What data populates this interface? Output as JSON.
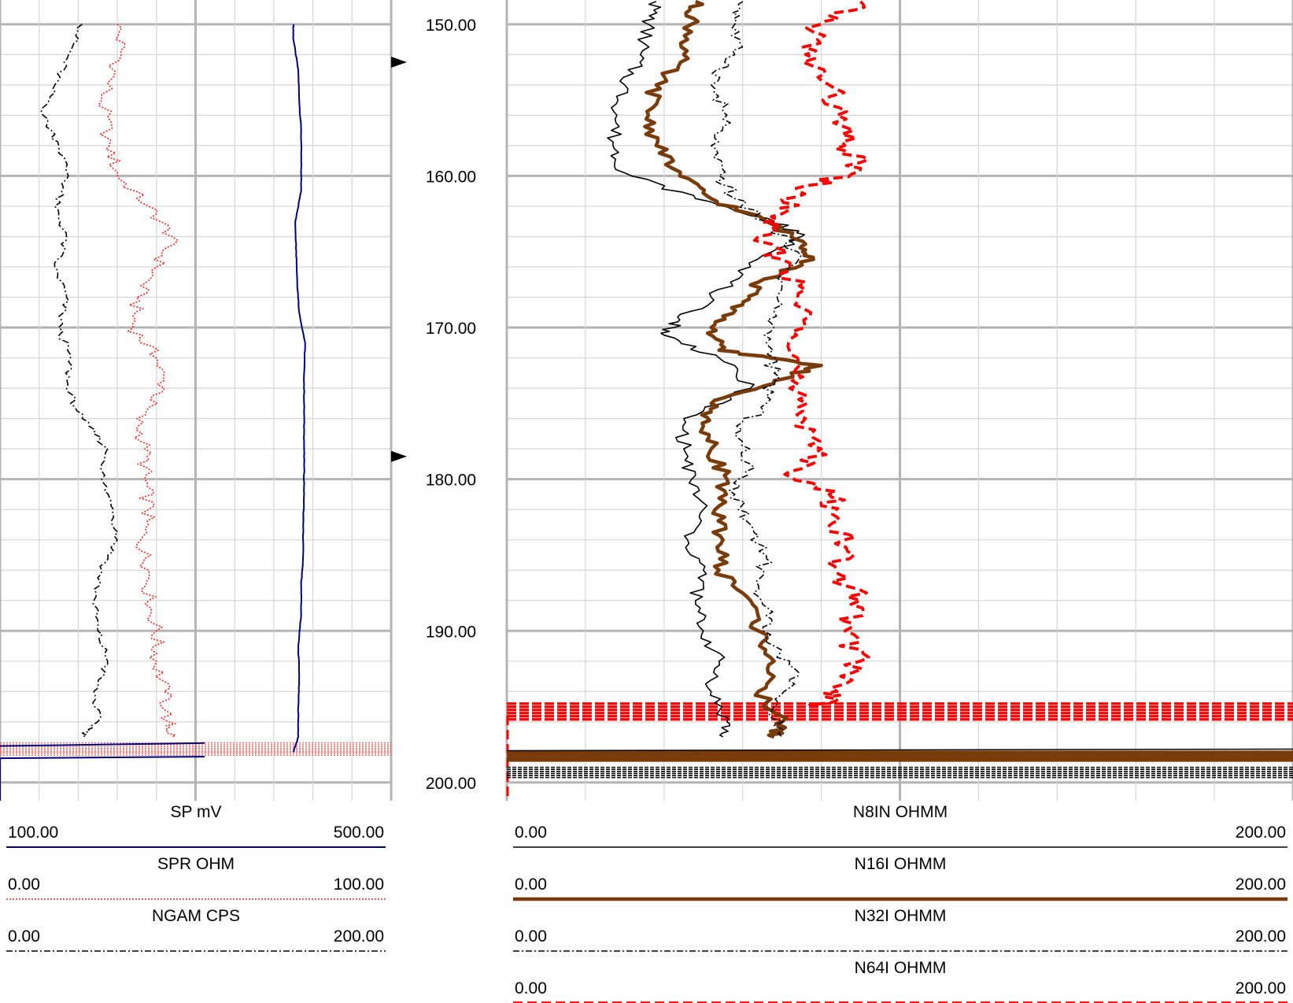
{
  "depth_track": {
    "labels": [
      "150.00",
      "160.00",
      "170.00",
      "180.00",
      "190.00",
      "200.00"
    ],
    "depth_range": [
      148.4,
      201.2
    ]
  },
  "legend": {
    "left": [
      {
        "name": "SP",
        "unit": "mV",
        "min": "100.00",
        "max": "500.00"
      },
      {
        "name": "SPR",
        "unit": "OHM",
        "min": "0.00",
        "max": "100.00"
      },
      {
        "name": "NGAM",
        "unit": "CPS",
        "min": "0.00",
        "max": "200.00"
      }
    ],
    "right": [
      {
        "name": "N8IN",
        "unit": "OHMM",
        "min": "0.00",
        "max": "200.00"
      },
      {
        "name": "N16I",
        "unit": "OHMM",
        "min": "0.00",
        "max": "200.00"
      },
      {
        "name": "N32I",
        "unit": "OHMM",
        "min": "0.00",
        "max": "200.00"
      },
      {
        "name": "N64I",
        "unit": "OHMM",
        "min": "0.00",
        "max": "200.00"
      }
    ]
  },
  "chart_data": {
    "type": "line",
    "ylim": [
      148.4,
      201.2
    ],
    "y_reversed": true,
    "grid": true,
    "depth_markers": [
      152.5,
      178.5
    ],
    "tracks": [
      {
        "series": [
          {
            "name": "SP",
            "unit": "mV",
            "xlim": [
              100,
              500
            ],
            "color": "#000080",
            "style": "solid",
            "points": [
              [
                150,
                400
              ],
              [
                151,
                400
              ],
              [
                153,
                405
              ],
              [
                155,
                406
              ],
              [
                157,
                408
              ],
              [
                159,
                408
              ],
              [
                161,
                408
              ],
              [
                163,
                402
              ],
              [
                165,
                403
              ],
              [
                167,
                404
              ],
              [
                169,
                406
              ],
              [
                171,
                412
              ],
              [
                173,
                411
              ],
              [
                175,
                411
              ],
              [
                177,
                411
              ],
              [
                179,
                411
              ],
              [
                181,
                411
              ],
              [
                183,
                410
              ],
              [
                185,
                410
              ],
              [
                187,
                408
              ],
              [
                189,
                408
              ],
              [
                191,
                405
              ],
              [
                193,
                406
              ],
              [
                195,
                405
              ],
              [
                197,
                405
              ],
              [
                198,
                400
              ]
            ]
          },
          {
            "name": "SPR",
            "unit": "OHM",
            "xlim": [
              0,
              100
            ],
            "color": "#ff2020",
            "style": "dotted",
            "points": [
              [
                150,
                30
              ],
              [
                152,
                31
              ],
              [
                155,
                26
              ],
              [
                158,
                28
              ],
              [
                160,
                30
              ],
              [
                162,
                38
              ],
              [
                164,
                44
              ],
              [
                166,
                40
              ],
              [
                168,
                35
              ],
              [
                170,
                34
              ],
              [
                172,
                40
              ],
              [
                174,
                42
              ],
              [
                176,
                35
              ],
              [
                178,
                37
              ],
              [
                180,
                37
              ],
              [
                182,
                38
              ],
              [
                184,
                36
              ],
              [
                186,
                38
              ],
              [
                188,
                38
              ],
              [
                190,
                40
              ],
              [
                192,
                40
              ],
              [
                194,
                42
              ],
              [
                196,
                43
              ],
              [
                197,
                44
              ]
            ]
          },
          {
            "name": "NGAM",
            "unit": "CPS",
            "xlim": [
              0,
              200
            ],
            "color": "#000000",
            "style": "dashdot",
            "points": [
              [
                150,
                42
              ],
              [
                152,
                35
              ],
              [
                154,
                28
              ],
              [
                156,
                22
              ],
              [
                158,
                30
              ],
              [
                160,
                35
              ],
              [
                162,
                28
              ],
              [
                164,
                34
              ],
              [
                166,
                28
              ],
              [
                168,
                34
              ],
              [
                170,
                30
              ],
              [
                172,
                36
              ],
              [
                174,
                34
              ],
              [
                176,
                42
              ],
              [
                178,
                55
              ],
              [
                180,
                52
              ],
              [
                182,
                58
              ],
              [
                184,
                60
              ],
              [
                186,
                52
              ],
              [
                188,
                48
              ],
              [
                190,
                50
              ],
              [
                192,
                55
              ],
              [
                194,
                48
              ],
              [
                196,
                50
              ],
              [
                197,
                42
              ]
            ]
          }
        ]
      },
      {
        "series": [
          {
            "name": "N8IN",
            "unit": "OHMM",
            "xlim": [
              0,
              200
            ],
            "color": "#000000",
            "style": "solid",
            "points": [
              [
                148.5,
                38
              ],
              [
                150,
                36
              ],
              [
                152,
                34
              ],
              [
                154,
                30
              ],
              [
                156,
                28
              ],
              [
                158,
                27
              ],
              [
                159.8,
                30
              ],
              [
                161.5,
                48
              ],
              [
                163,
                68
              ],
              [
                164,
                75
              ],
              [
                166,
                62
              ],
              [
                168,
                52
              ],
              [
                169.5,
                44
              ],
              [
                170.5,
                40
              ],
              [
                172,
                54
              ],
              [
                174,
                62
              ],
              [
                176,
                45
              ],
              [
                178,
                45
              ],
              [
                180,
                47
              ],
              [
                182,
                50
              ],
              [
                184,
                46
              ],
              [
                186,
                50
              ],
              [
                188,
                48
              ],
              [
                190,
                50
              ],
              [
                192,
                54
              ],
              [
                194,
                52
              ],
              [
                196,
                56
              ],
              [
                197,
                55
              ]
            ]
          },
          {
            "name": "N16I",
            "unit": "OHMM",
            "xlim": [
              0,
              200
            ],
            "color": "#7a3b0a",
            "style": "solid",
            "points": [
              [
                148.5,
                48
              ],
              [
                150,
                47
              ],
              [
                152,
                45
              ],
              [
                154,
                38
              ],
              [
                156,
                36
              ],
              [
                158,
                38
              ],
              [
                160,
                44
              ],
              [
                161.5,
                52
              ],
              [
                163,
                66
              ],
              [
                164.5,
                76
              ],
              [
                165.5,
                78
              ],
              [
                167,
                64
              ],
              [
                168.5,
                60
              ],
              [
                170,
                52
              ],
              [
                171.5,
                54
              ],
              [
                172.5,
                80
              ],
              [
                173.5,
                68
              ],
              [
                175,
                52
              ],
              [
                176.5,
                50
              ],
              [
                178,
                52
              ],
              [
                180,
                56
              ],
              [
                182,
                53
              ],
              [
                184,
                55
              ],
              [
                186,
                54
              ],
              [
                188,
                62
              ],
              [
                190,
                64
              ],
              [
                192,
                68
              ],
              [
                194,
                64
              ],
              [
                196,
                70
              ],
              [
                197,
                68
              ]
            ]
          },
          {
            "name": "N32I",
            "unit": "OHMM",
            "xlim": [
              0,
              200
            ],
            "color": "#000000",
            "style": "dashdot",
            "points": [
              [
                148.5,
                60
              ],
              [
                150,
                58
              ],
              [
                152,
                58
              ],
              [
                154,
                52
              ],
              [
                156,
                56
              ],
              [
                158,
                52
              ],
              [
                160,
                54
              ],
              [
                161.5,
                58
              ],
              [
                163,
                66
              ],
              [
                165,
                74
              ],
              [
                167,
                70
              ],
              [
                169,
                68
              ],
              [
                171,
                66
              ],
              [
                173,
                68
              ],
              [
                175,
                66
              ],
              [
                177,
                58
              ],
              [
                179,
                62
              ],
              [
                181,
                58
              ],
              [
                183,
                62
              ],
              [
                185,
                66
              ],
              [
                187,
                64
              ],
              [
                189,
                66
              ],
              [
                191,
                68
              ],
              [
                193,
                74
              ],
              [
                195,
                68
              ],
              [
                197,
                70
              ]
            ]
          },
          {
            "name": "N64I",
            "unit": "OHMM",
            "xlim": [
              0,
              200
            ],
            "color": "#ff0000",
            "style": "dashed",
            "points": [
              [
                148.5,
                90
              ],
              [
                150,
                80
              ],
              [
                152,
                76
              ],
              [
                154,
                82
              ],
              [
                156,
                84
              ],
              [
                158,
                86
              ],
              [
                159.5,
                90
              ],
              [
                161,
                74
              ],
              [
                162.5,
                70
              ],
              [
                164,
                64
              ],
              [
                166,
                72
              ],
              [
                168,
                74
              ],
              [
                170,
                76
              ],
              [
                172,
                74
              ],
              [
                174,
                72
              ],
              [
                176,
                76
              ],
              [
                178,
                80
              ],
              [
                179.5,
                72
              ],
              [
                181,
                82
              ],
              [
                182.5,
                84
              ],
              [
                184,
                86
              ],
              [
                186,
                84
              ],
              [
                188,
                90
              ],
              [
                190,
                86
              ],
              [
                192,
                90
              ],
              [
                194,
                84
              ],
              [
                195,
                80
              ]
            ]
          }
        ]
      }
    ]
  }
}
